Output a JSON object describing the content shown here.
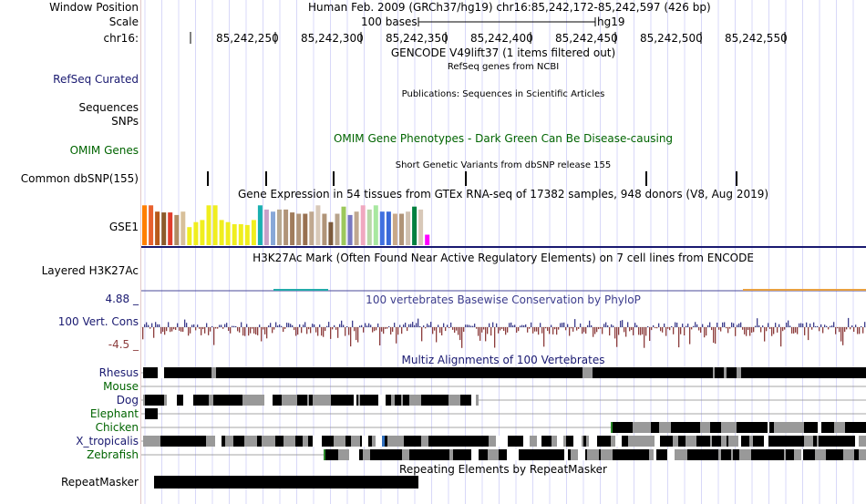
{
  "header": {
    "window_position_label": "Window Position",
    "window_position_value": "Human Feb. 2009 (GRCh37/hg19)   chr16:85,242,172-85,242,597 (426 bp)",
    "scale_label": "Scale",
    "scale_bar_text": "100 bases",
    "scale_assembly": "hg19",
    "chrom_label": "chr16:",
    "ruler_ticks": [
      "85,242,250",
      "85,242,300",
      "85,242,350",
      "85,242,400",
      "85,242,450",
      "85,242,500",
      "85,242,550"
    ]
  },
  "tracks": {
    "gencode_title": "GENCODE V49lift37 (1 items filtered out)",
    "refseq_title": "RefSeq genes from NCBI",
    "refseq_label": "RefSeq Curated",
    "publications_title": "Publications: Sequences in Scientific Articles",
    "sequences_label": "Sequences",
    "snps_label": "SNPs",
    "omim_label": "OMIM Genes",
    "omim_title": "OMIM Gene Phenotypes - Dark Green Can Be Disease-causing",
    "dbsnp_title": "Short Genetic Variants from dbSNP release 155",
    "dbsnp_label": "Common dbSNP(155)",
    "gtex_title": "Gene Expression in 54 tissues from GTEx RNA-seq of 17382 samples, 948 donors (V8, Aug 2019)",
    "gtex_label": "GSE1",
    "h3k27ac_title": "H3K27Ac Mark (Often Found Near Active Regulatory Elements) on 7 cell lines from ENCODE",
    "h3k27ac_label": "Layered H3K27Ac",
    "cons_title": "100 vertebrates Basewise Conservation by PhyloP",
    "cons_label": "100 Vert. Cons",
    "cons_max": "4.88 _",
    "cons_min": "-4.5 _",
    "multiz_title": "Multiz Alignments of 100 Vertebrates",
    "species": [
      {
        "name": "Rhesus",
        "color": "#191970"
      },
      {
        "name": "Mouse",
        "color": "#006400"
      },
      {
        "name": "Dog",
        "color": "#191970"
      },
      {
        "name": "Elephant",
        "color": "#006400"
      },
      {
        "name": "Chicken",
        "color": "#006400"
      },
      {
        "name": "X_tropicalis",
        "color": "#191970"
      },
      {
        "name": "Zebrafish",
        "color": "#006400"
      }
    ],
    "repeat_title": "Repeating Elements by RepeatMasker",
    "repeat_label": "RepeatMasker"
  },
  "colors": {
    "track_label_blue": "#191970",
    "track_label_green": "#006400",
    "omim_title_green": "#006400",
    "cons_blue": "#3c3c8c",
    "cons_red": "#8c3c3c",
    "navy_rule": "#191970"
  },
  "gtex_bars": [
    {
      "color": "#ff7f00",
      "value": 0.95
    },
    {
      "color": "#e8612e",
      "value": 0.95
    },
    {
      "color": "#b85a1b",
      "value": 0.8
    },
    {
      "color": "#8c5a2b",
      "value": 0.78
    },
    {
      "color": "#e03c2c",
      "value": 0.78
    },
    {
      "color": "#b08c64",
      "value": 0.72
    },
    {
      "color": "#d8c09a",
      "value": 0.8
    },
    {
      "color": "#f0ee1e",
      "value": 0.43
    },
    {
      "color": "#f0ee1e",
      "value": 0.55
    },
    {
      "color": "#f0ee1e",
      "value": 0.6
    },
    {
      "color": "#f0ee1e",
      "value": 0.95
    },
    {
      "color": "#f0ee1e",
      "value": 0.95
    },
    {
      "color": "#f0ee1e",
      "value": 0.6
    },
    {
      "color": "#f0ee1e",
      "value": 0.55
    },
    {
      "color": "#f0ee1e",
      "value": 0.5
    },
    {
      "color": "#f0ee1e",
      "value": 0.5
    },
    {
      "color": "#f0ee1e",
      "value": 0.48
    },
    {
      "color": "#f0ee1e",
      "value": 0.6
    },
    {
      "color": "#1ab0b0",
      "value": 0.95
    },
    {
      "color": "#c8a0c8",
      "value": 0.85
    },
    {
      "color": "#88a8d8",
      "value": 0.8
    },
    {
      "color": "#b8a890",
      "value": 0.85
    },
    {
      "color": "#b09478",
      "value": 0.85
    },
    {
      "color": "#a07c5c",
      "value": 0.78
    },
    {
      "color": "#b09478",
      "value": 0.75
    },
    {
      "color": "#987050",
      "value": 0.75
    },
    {
      "color": "#c0a890",
      "value": 0.8
    },
    {
      "color": "#d8c8b8",
      "value": 0.95
    },
    {
      "color": "#b09478",
      "value": 0.75
    },
    {
      "color": "#7c5a3c",
      "value": 0.55
    },
    {
      "color": "#b8a48c",
      "value": 0.75
    },
    {
      "color": "#9cc85c",
      "value": 0.92
    },
    {
      "color": "#7878c0",
      "value": 0.72
    },
    {
      "color": "#c0a890",
      "value": 0.8
    },
    {
      "color": "#f0a8c0",
      "value": 0.95
    },
    {
      "color": "#b8d8a8",
      "value": 0.85
    },
    {
      "color": "#a8e8a0",
      "value": 0.95
    },
    {
      "color": "#4070e0",
      "value": 0.8
    },
    {
      "color": "#3868d8",
      "value": 0.8
    },
    {
      "color": "#c8a888",
      "value": 0.75
    },
    {
      "color": "#b09478",
      "value": 0.75
    },
    {
      "color": "#d0c0b0",
      "value": 0.8
    },
    {
      "color": "#008040",
      "value": 0.92
    },
    {
      "color": "#d8c8b8",
      "value": 0.85
    },
    {
      "color": "#ff00ff",
      "value": 0.25
    }
  ]
}
